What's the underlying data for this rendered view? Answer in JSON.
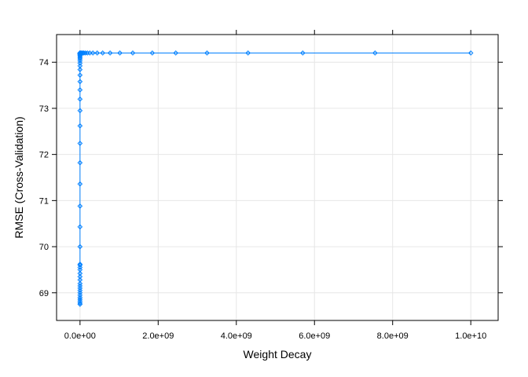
{
  "chart_data": {
    "type": "line",
    "title": "",
    "xlabel": "Weight Decay",
    "ylabel": "RMSE (Cross-Validation)",
    "xlim": [
      -600000000,
      10700000000
    ],
    "ylim": [
      68.4,
      74.6
    ],
    "grid": true,
    "legend": "none",
    "colors": {
      "series": "#0080ff",
      "grid": "#e6e6e6",
      "frame": "#000000"
    },
    "xticks": [
      {
        "value": 0,
        "label": "0.0e+00"
      },
      {
        "value": 2000000000,
        "label": "2.0e+09"
      },
      {
        "value": 4000000000,
        "label": "4.0e+09"
      },
      {
        "value": 6000000000,
        "label": "6.0e+09"
      },
      {
        "value": 8000000000,
        "label": "8.0e+09"
      },
      {
        "value": 10000000000,
        "label": "1.0e+10"
      }
    ],
    "yticks": [
      {
        "value": 69,
        "label": "69"
      },
      {
        "value": 70,
        "label": "70"
      },
      {
        "value": 71,
        "label": "71"
      },
      {
        "value": 72,
        "label": "72"
      },
      {
        "value": 73,
        "label": "73"
      },
      {
        "value": 74,
        "label": "74"
      }
    ],
    "series": [
      {
        "x": [
          0,
          0,
          0,
          0,
          0,
          0,
          0,
          0,
          0,
          0,
          0,
          0,
          0,
          0,
          0,
          0,
          0,
          0,
          0,
          0,
          0,
          0,
          0,
          0,
          0,
          0,
          0,
          0,
          0,
          0,
          0,
          0,
          0,
          0,
          0,
          0,
          0,
          0,
          0,
          0,
          0,
          0,
          0,
          0,
          0,
          0,
          0,
          0,
          0,
          0,
          0,
          0,
          25000000,
          45000000,
          75000000,
          100000000,
          140000000,
          190000000,
          250000000,
          330000000,
          440000000,
          580000000,
          770000000,
          1020000000,
          1350000000,
          1850000000,
          2450000000,
          3250000000,
          4300000000,
          5700000000,
          7550000000,
          10000000000
        ],
        "y": [
          68.75,
          68.78,
          68.82,
          68.86,
          68.9,
          68.95,
          69.0,
          69.05,
          69.1,
          69.15,
          69.2,
          69.28,
          69.35,
          69.42,
          69.5,
          69.55,
          69.6,
          69.62,
          70.0,
          70.43,
          70.88,
          71.36,
          71.82,
          72.24,
          72.62,
          72.95,
          73.2,
          73.4,
          73.58,
          73.72,
          73.84,
          73.92,
          73.98,
          74.03,
          74.07,
          74.1,
          74.13,
          74.15,
          74.16,
          74.17,
          74.18,
          74.18,
          74.19,
          74.19,
          74.19,
          74.19,
          74.2,
          74.2,
          74.2,
          74.2,
          74.2,
          74.2,
          74.2,
          74.2,
          74.2,
          74.2,
          74.2,
          74.2,
          74.2,
          74.2,
          74.2,
          74.2,
          74.2,
          74.2,
          74.2,
          74.2,
          74.2,
          74.2,
          74.2,
          74.2,
          74.2,
          74.2
        ]
      }
    ]
  }
}
